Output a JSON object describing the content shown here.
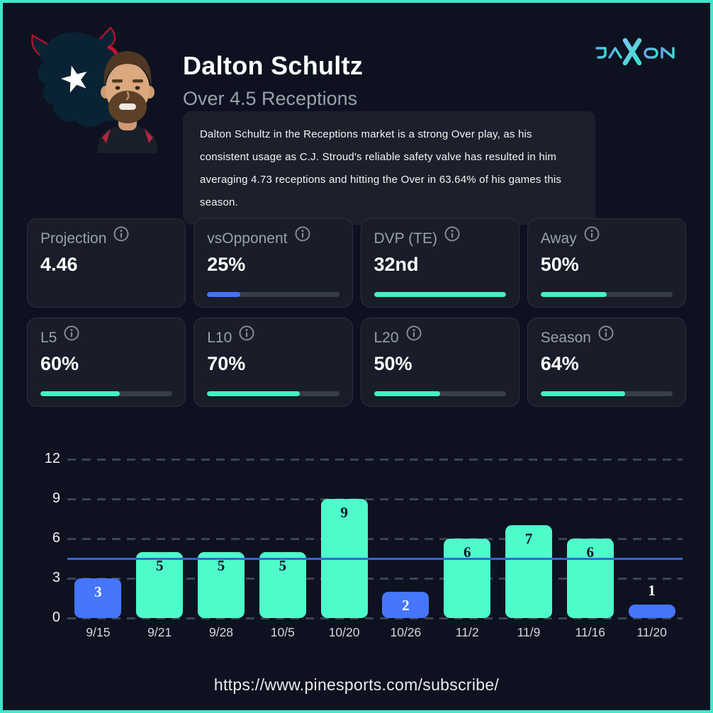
{
  "page": {
    "background": "#0e1220",
    "border_color": "#3fe8c8",
    "footer_url": "https://www.pinesports.com/subscribe/"
  },
  "header": {
    "player_name": "Dalton Schultz",
    "bet_label": "Over 4.5 Receptions",
    "description": "Dalton Schultz in the Receptions market is a strong Over play, as his consistent usage as C.J. Stroud's reliable safety valve has resulted in him averaging 4.73 receptions and hitting the Over in 63.64% of his games this season.",
    "brand": "JAXON",
    "team_logo": "houston-texans-bull",
    "player_photo": "dalton-schultz-headshot"
  },
  "stats": [
    {
      "label": "Projection",
      "value": "4.46",
      "bar_pct": null,
      "bar_color": null
    },
    {
      "label": "vsOpponent",
      "value": "25%",
      "bar_pct": 25,
      "bar_color": "#4673f5"
    },
    {
      "label": "DVP (TE)",
      "value": "32nd",
      "bar_pct": 100,
      "bar_color": "#44f0c4"
    },
    {
      "label": "Away",
      "value": "50%",
      "bar_pct": 50,
      "bar_color": "#44f0c4"
    },
    {
      "label": "L5",
      "value": "60%",
      "bar_pct": 60,
      "bar_color": "#44f0c4"
    },
    {
      "label": "L10",
      "value": "70%",
      "bar_pct": 70,
      "bar_color": "#44f0c4"
    },
    {
      "label": "L20",
      "value": "50%",
      "bar_pct": 50,
      "bar_color": "#44f0c4"
    },
    {
      "label": "Season",
      "value": "64%",
      "bar_pct": 64,
      "bar_color": "#44f0c4"
    }
  ],
  "chart_data": {
    "type": "bar",
    "categories": [
      "9/15",
      "9/21",
      "9/28",
      "10/5",
      "10/20",
      "10/26",
      "11/2",
      "11/9",
      "11/16",
      "11/20"
    ],
    "values": [
      3,
      5,
      5,
      5,
      9,
      2,
      6,
      7,
      6,
      1
    ],
    "betting_line": 4.5,
    "yticks": [
      0,
      3,
      6,
      9,
      12
    ],
    "ylim": [
      0,
      12
    ],
    "grid": "dashed-horizontal",
    "legend": "none",
    "title": "",
    "xlabel": "",
    "ylabel": "",
    "colors": {
      "over_bar": "#4efccb",
      "under_bar": "#4576fb",
      "line": "#3565d8",
      "label_on_over": "#0f1624",
      "label_on_under": "#ffffff"
    }
  }
}
